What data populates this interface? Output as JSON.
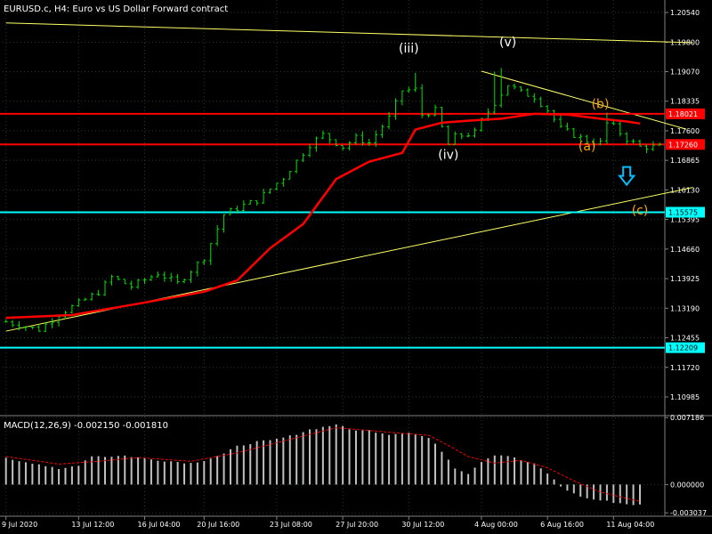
{
  "header": {
    "symbol_line": "EURUSD.c, H4:  Euro vs US Dollar Forward contract"
  },
  "colors": {
    "background": "#000000",
    "grid": "#1f3b2a",
    "axis": "#808080",
    "text": "#ffffff",
    "bull_candle": "#00e000",
    "ma_line": "#ff0000",
    "support_line": "#ffff66",
    "red_level": "#ff0000",
    "cyan_level": "#00ffff",
    "macd_hist": "#c0c0c0",
    "macd_signal": "#ff0000",
    "wave_label_white": "#ffffff",
    "wave_label_orange": "#ffa500",
    "arrow": "#00bfff"
  },
  "chart_data": [
    {
      "type": "candlestick",
      "title": "EURUSD.c, H4:  Euro vs US Dollar Forward contract",
      "x_axis": {
        "tick_labels": [
          "9 Jul 2020",
          "13 Jul 12:00",
          "16 Jul 04:00",
          "20 Jul 16:00",
          "23 Jul 08:00",
          "27 Jul 20:00",
          "30 Jul 12:00",
          "4 Aug 00:00",
          "6 Aug 16:00",
          "11 Aug 04:00"
        ],
        "tick_pos": [
          0,
          11,
          21,
          30,
          41,
          51,
          61,
          72,
          82,
          92
        ]
      },
      "y_axis": {
        "ylim": [
          1.1052,
          1.2085
        ],
        "tick_labels": [
          "1.20540",
          "1.19800",
          "1.19070",
          "1.18335",
          "1.17600",
          "1.16865",
          "1.16130",
          "1.15395",
          "1.14660",
          "1.13925",
          "1.13190",
          "1.12455",
          "1.11720",
          "1.10985"
        ]
      },
      "n_bars": 100,
      "price_path": {
        "bar": [
          0,
          5,
          8,
          14,
          16,
          19,
          23,
          26,
          30,
          33,
          36,
          38,
          42,
          46,
          48,
          51,
          53,
          55,
          58,
          60,
          62,
          63,
          65,
          67,
          68,
          71,
          72,
          74,
          76,
          78,
          80,
          82,
          84,
          86,
          88,
          90,
          91,
          92,
          94,
          96
        ],
        "close": [
          1.1285,
          1.1266,
          1.1304,
          1.1359,
          1.1396,
          1.1373,
          1.1406,
          1.1381,
          1.1445,
          1.1552,
          1.1575,
          1.1587,
          1.1644,
          1.1726,
          1.175,
          1.172,
          1.1742,
          1.173,
          1.1792,
          1.186,
          1.1862,
          1.18,
          1.181,
          1.1725,
          1.1745,
          1.1755,
          1.1785,
          1.183,
          1.1875,
          1.1855,
          1.1845,
          1.1812,
          1.1765,
          1.175,
          1.1735,
          1.173,
          1.1778,
          1.177,
          1.174,
          1.172
        ]
      },
      "wick_highs": [
        {
          "bar": 62,
          "price": 1.1904
        },
        {
          "bar": 74,
          "price": 1.1907
        },
        {
          "bar": 75,
          "price": 1.1916
        },
        {
          "bar": 91,
          "price": 1.1805
        }
      ],
      "moving_average": {
        "bar": [
          0,
          10,
          20,
          30,
          35,
          40,
          45,
          50,
          55,
          60,
          62,
          66,
          70,
          75,
          80,
          85,
          90,
          94,
          96
        ],
        "value": [
          1.1295,
          1.1302,
          1.133,
          1.136,
          1.1388,
          1.1468,
          1.1528,
          1.164,
          1.1683,
          1.1705,
          1.1763,
          1.178,
          1.1785,
          1.179,
          1.1802,
          1.18,
          1.179,
          1.1783,
          1.1778
        ]
      },
      "horizontal_levels": [
        {
          "price": 1.18021,
          "label": "1.18021",
          "color": "red"
        },
        {
          "price": 1.1726,
          "label": "1.17260",
          "color": "red"
        },
        {
          "price": 1.15575,
          "label": "1.15575",
          "color": "cyan"
        },
        {
          "price": 1.12209,
          "label": "1.12209",
          "color": "cyan"
        }
      ],
      "trendlines": [
        {
          "name": "upper",
          "from": {
            "bar": 0,
            "price": 1.2028
          },
          "to": {
            "bar": 104,
            "price": 1.1979
          }
        },
        {
          "name": "support",
          "from": {
            "bar": 0,
            "price": 1.1262
          },
          "to": {
            "bar": 104,
            "price": 1.1619
          }
        },
        {
          "name": "resistance",
          "from": {
            "bar": 72,
            "price": 1.1908
          },
          "to": {
            "bar": 103,
            "price": 1.1764
          }
        }
      ],
      "wave_labels": [
        {
          "text": "(iii)",
          "bar": 61,
          "price": 1.1954,
          "color": "white"
        },
        {
          "text": "(iv)",
          "bar": 67,
          "price": 1.169,
          "color": "white"
        },
        {
          "text": "(v)",
          "bar": 76,
          "price": 1.197,
          "color": "white"
        },
        {
          "text": "(a)",
          "bar": 88,
          "price": 1.1711,
          "color": "orange"
        },
        {
          "text": "(b)",
          "bar": 90,
          "price": 1.1816,
          "color": "orange"
        },
        {
          "text": "(c)",
          "bar": 96,
          "price": 1.1552,
          "color": "orange"
        }
      ],
      "arrow_down": {
        "bar": 94,
        "price": 1.167
      }
    },
    {
      "type": "bar",
      "title": "MACD(12,26,9) -0.002150 -0.001810",
      "indicator": "MACD(12,26,9)",
      "macd_value": "-0.002150",
      "signal_value": "-0.001810",
      "y_axis": {
        "ylim": [
          -0.0034,
          0.0074
        ],
        "tick_labels": [
          "0.007186",
          "0.000000",
          "-0.003037"
        ]
      },
      "histogram": {
        "bar": [
          0,
          5,
          8,
          11,
          13,
          15,
          18,
          22,
          25,
          28,
          30,
          33,
          35,
          38,
          40,
          43,
          46,
          49,
          50,
          52,
          55,
          58,
          61,
          64,
          66,
          68,
          70,
          72,
          74,
          76,
          78,
          80,
          82,
          84,
          86,
          88,
          90,
          92,
          94,
          96
        ],
        "value": [
          0.0028,
          0.0022,
          0.0016,
          0.0021,
          0.0031,
          0.003,
          0.0031,
          0.0027,
          0.0025,
          0.0023,
          0.0026,
          0.0033,
          0.0041,
          0.0046,
          0.0047,
          0.0052,
          0.0059,
          0.0063,
          0.0065,
          0.0059,
          0.0058,
          0.0054,
          0.0056,
          0.005,
          0.0036,
          0.0018,
          0.0012,
          0.0025,
          0.0032,
          0.0031,
          0.0026,
          0.0022,
          0.0012,
          -0.0002,
          -0.001,
          -0.0015,
          -0.0017,
          -0.0019,
          -0.0021,
          -0.0022
        ]
      },
      "signal": {
        "bar": [
          0,
          8,
          14,
          20,
          28,
          35,
          40,
          45,
          50,
          55,
          60,
          64,
          67,
          70,
          74,
          78,
          82,
          86,
          90,
          94,
          96
        ],
        "value": [
          0.003,
          0.0022,
          0.0025,
          0.0029,
          0.0025,
          0.0034,
          0.0043,
          0.0052,
          0.0061,
          0.0058,
          0.0055,
          0.0053,
          0.0042,
          0.003,
          0.0023,
          0.0026,
          0.0018,
          0.0004,
          -0.0008,
          -0.0015,
          -0.0018
        ]
      }
    }
  ]
}
